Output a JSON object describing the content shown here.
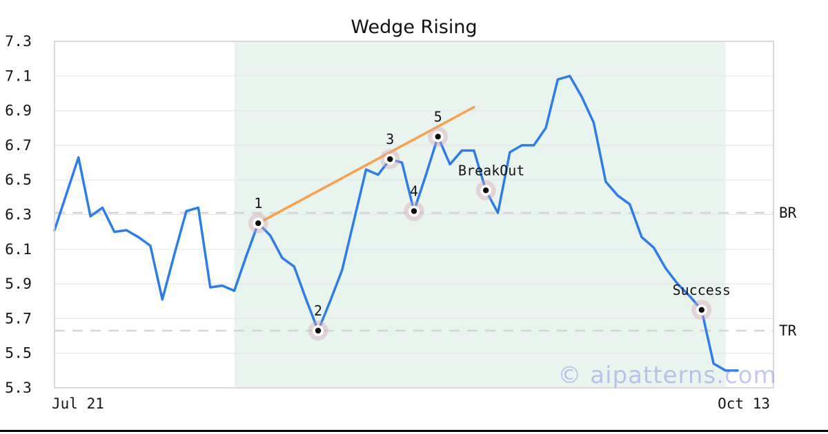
{
  "page": {
    "title": "Wedge Rising",
    "watermark": "© aipatterns.com"
  },
  "chart_data": {
    "type": "line",
    "title": "Wedge Rising",
    "xlabel": "",
    "ylabel": "",
    "grid": "horizontal",
    "legend": null,
    "xlim": [
      0,
      60
    ],
    "ylim": [
      5.3,
      7.3
    ],
    "x_tick_labels": [
      "Jul 21",
      "Oct 13"
    ],
    "y_tick_labels": [
      "7.3",
      "7.1",
      "6.9",
      "6.7",
      "6.5",
      "6.3",
      "6.1",
      "5.9",
      "5.7",
      "5.5",
      "5.3"
    ],
    "series": [
      {
        "name": "price",
        "color": "#2d7ce8",
        "x_start": 0,
        "x_step": 1,
        "values": [
          6.21,
          6.42,
          6.63,
          6.29,
          6.34,
          6.2,
          6.21,
          6.17,
          6.12,
          5.81,
          6.07,
          6.32,
          6.34,
          5.88,
          5.89,
          5.86,
          6.06,
          6.25,
          6.18,
          6.05,
          6.0,
          5.81,
          5.63,
          5.8,
          5.98,
          6.27,
          6.56,
          6.53,
          6.62,
          6.6,
          6.32,
          6.53,
          6.75,
          6.59,
          6.67,
          6.67,
          6.44,
          6.31,
          6.66,
          6.7,
          6.7,
          6.8,
          7.08,
          7.1,
          6.98,
          6.83,
          6.49,
          6.41,
          6.36,
          6.17,
          6.11,
          5.99,
          5.9,
          5.83,
          5.75,
          5.44,
          5.4,
          5.4
        ]
      }
    ],
    "trendline": {
      "name": "rising-wedge-support-line",
      "color": "#f7a14e",
      "x1": 17,
      "v1": 6.25,
      "x2": 35,
      "v2": 6.92
    },
    "levels": [
      {
        "label": "BR",
        "value": 6.31
      },
      {
        "label": "TR",
        "value": 5.63
      }
    ],
    "pattern_zone": {
      "x1": 15,
      "x2": 56,
      "color": "#e9f4ef"
    },
    "markers": [
      {
        "label": "1",
        "x": 17,
        "value": 6.25,
        "dx": 0
      },
      {
        "label": "2",
        "x": 22,
        "value": 5.63,
        "dx": 0
      },
      {
        "label": "3",
        "x": 28,
        "value": 6.62,
        "dx": 0
      },
      {
        "label": "4",
        "x": 30,
        "value": 6.32,
        "dx": 0
      },
      {
        "label": "5",
        "x": 32,
        "value": 6.75,
        "dx": 0
      },
      {
        "label": "BreakOut",
        "x": 36,
        "value": 6.44,
        "dx": 8
      },
      {
        "label": "Success",
        "x": 54,
        "value": 5.75,
        "dx": 0
      }
    ],
    "marker_style": {
      "halo_color": "rgba(216,165,178,0.40)",
      "ring_color": "#ffffff",
      "dot_color": "#0d0d0d"
    },
    "watermark": "© aipatterns.com",
    "line_colors": {
      "grid": "#e6e6e6",
      "dashed_level": "#d4d4d4",
      "plot_border": "#d0d0d0"
    }
  }
}
